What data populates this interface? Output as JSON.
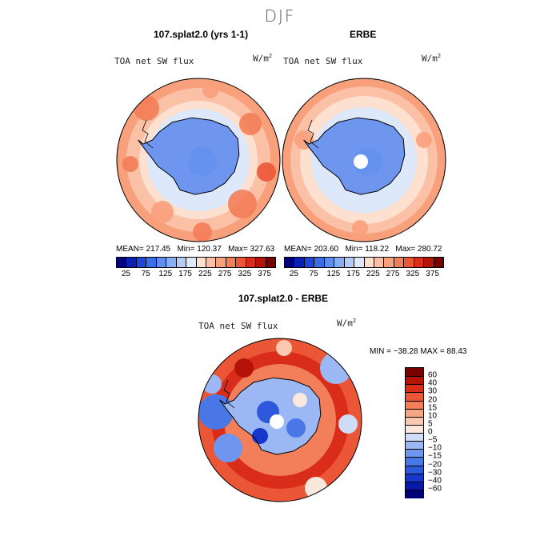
{
  "title": "DJF",
  "panels": [
    {
      "title": "107.splat2.0 (yrs 1-1)",
      "field": "TOA net SW flux",
      "units_base": "W/m",
      "units_exp": "2",
      "stats": {
        "mean_label": "MEAN=",
        "mean": "217.45",
        "min_label": "Min=",
        "min": "120.37",
        "max_label": "Max=",
        "max": "327.63"
      }
    },
    {
      "title": "ERBE",
      "field": "TOA net SW flux",
      "units_base": "W/m",
      "units_exp": "2",
      "stats": {
        "mean_label": "MEAN=",
        "mean": "203.60",
        "min_label": "Min=",
        "min": "118.22",
        "max_label": "Max=",
        "max": "280.72"
      }
    }
  ],
  "diff_panel": {
    "title": "107.splat2.0 - ERBE",
    "field": "TOA net SW flux",
    "units_base": "W/m",
    "units_exp": "2",
    "minmax_text": "MIN = −38.28 MAX =   88.43"
  },
  "colors": {
    "abs_scale": [
      "#00007a",
      "#0a1fb5",
      "#1e46d8",
      "#3a6ee6",
      "#5f8fee",
      "#86aef2",
      "#b5cdf6",
      "#dde8fa",
      "#fde0d0",
      "#fbc1a6",
      "#f8a07c",
      "#f37d58",
      "#ea5636",
      "#d92d1a",
      "#b51208",
      "#7a0000"
    ],
    "diff_scale": [
      "#00007a",
      "#0719a8",
      "#1737cc",
      "#2e58dc",
      "#4a77e6",
      "#6e96ee",
      "#9cb8f4",
      "#cfdcf8",
      "#fbe8dc",
      "#f9c8ae",
      "#f6a585",
      "#f27e5a",
      "#ea5636",
      "#d92d1a",
      "#b51208",
      "#7a0000"
    ],
    "ocean_mid": "#f8a07c",
    "ice": "#6f96ee"
  },
  "chart_data": [
    {
      "type": "heatmap",
      "projection": "south-polar-stereographic",
      "title": "107.splat2.0 (yrs 1-1)",
      "variable": "TOA net SW flux",
      "units": "W/m2",
      "mean": 217.45,
      "min": 120.37,
      "max": 327.63,
      "colorbar_ticks": [
        "25",
        "75",
        "125",
        "175",
        "225",
        "275",
        "325",
        "375"
      ],
      "contour_levels": [
        25,
        50,
        75,
        100,
        125,
        150,
        175,
        200,
        225,
        250,
        275,
        300,
        325,
        350,
        375
      ]
    },
    {
      "type": "heatmap",
      "projection": "south-polar-stereographic",
      "title": "ERBE",
      "variable": "TOA net SW flux",
      "units": "W/m2",
      "mean": 203.6,
      "min": 118.22,
      "max": 280.72,
      "colorbar_ticks": [
        "25",
        "75",
        "125",
        "175",
        "225",
        "275",
        "325",
        "375"
      ],
      "contour_levels": [
        25,
        50,
        75,
        100,
        125,
        150,
        175,
        200,
        225,
        250,
        275,
        300,
        325,
        350,
        375
      ]
    },
    {
      "type": "heatmap",
      "projection": "south-polar-stereographic",
      "title": "107.splat2.0 - ERBE",
      "variable": "TOA net SW flux",
      "units": "W/m2",
      "min": -38.28,
      "max": 88.43,
      "colorbar_labels": [
        "60",
        "40",
        "30",
        "20",
        "15",
        "10",
        "5",
        "0",
        "−5",
        "−10",
        "−15",
        "−20",
        "−30",
        "−40",
        "−60"
      ]
    }
  ]
}
